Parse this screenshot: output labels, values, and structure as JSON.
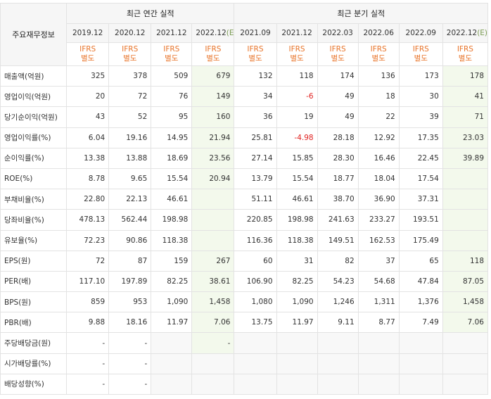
{
  "header": {
    "label_head": "주요재무정보",
    "group_annual": "최근 연간 실적",
    "group_quarter": "최근 분기 실적",
    "periods": [
      {
        "label": "2019.12",
        "est": false
      },
      {
        "label": "2020.12",
        "est": false
      },
      {
        "label": "2021.12",
        "est": false
      },
      {
        "label": "2022.12",
        "est": true,
        "suffix": "(E)"
      },
      {
        "label": "2021.09",
        "est": false
      },
      {
        "label": "2021.12",
        "est": false
      },
      {
        "label": "2022.03",
        "est": false
      },
      {
        "label": "2022.06",
        "est": false
      },
      {
        "label": "2022.09",
        "est": false
      },
      {
        "label": "2022.12",
        "est": true,
        "suffix": "(E)"
      }
    ],
    "ifrs_line1": "IFRS",
    "ifrs_line2": "별도"
  },
  "rows": [
    {
      "label": "매출액(억원)",
      "values": [
        "325",
        "378",
        "509",
        "679",
        "132",
        "118",
        "174",
        "136",
        "173",
        "178"
      ]
    },
    {
      "label": "영업이익(억원)",
      "values": [
        "20",
        "72",
        "76",
        "149",
        "34",
        "-6",
        "49",
        "18",
        "30",
        "41"
      ]
    },
    {
      "label": "당기순이익(억원)",
      "values": [
        "43",
        "52",
        "95",
        "160",
        "36",
        "19",
        "49",
        "22",
        "39",
        "71"
      ]
    },
    {
      "label": "영업이익률(%)",
      "values": [
        "6.04",
        "19.16",
        "14.95",
        "21.94",
        "25.81",
        "-4.98",
        "28.18",
        "12.92",
        "17.35",
        "23.03"
      ]
    },
    {
      "label": "순이익률(%)",
      "values": [
        "13.38",
        "13.88",
        "18.69",
        "23.56",
        "27.14",
        "15.85",
        "28.30",
        "16.46",
        "22.45",
        "39.89"
      ]
    },
    {
      "label": "ROE(%)",
      "values": [
        "8.78",
        "9.65",
        "15.54",
        "20.94",
        "13.79",
        "15.54",
        "18.77",
        "18.04",
        "17.54",
        ""
      ]
    },
    {
      "label": "부채비율(%)",
      "values": [
        "22.80",
        "22.13",
        "46.61",
        "",
        "51.11",
        "46.61",
        "38.70",
        "36.90",
        "37.31",
        ""
      ]
    },
    {
      "label": "당좌비율(%)",
      "values": [
        "478.13",
        "562.44",
        "198.98",
        "",
        "220.85",
        "198.98",
        "241.63",
        "233.27",
        "193.51",
        ""
      ]
    },
    {
      "label": "유보율(%)",
      "values": [
        "72.23",
        "90.86",
        "118.38",
        "",
        "116.36",
        "118.38",
        "149.51",
        "162.53",
        "175.49",
        ""
      ]
    },
    {
      "label": "EPS(원)",
      "values": [
        "72",
        "87",
        "159",
        "267",
        "60",
        "31",
        "82",
        "37",
        "65",
        "118"
      ]
    },
    {
      "label": "PER(배)",
      "values": [
        "117.10",
        "197.89",
        "82.25",
        "38.61",
        "106.90",
        "82.25",
        "54.23",
        "54.68",
        "47.84",
        "87.05"
      ]
    },
    {
      "label": "BPS(원)",
      "values": [
        "859",
        "953",
        "1,090",
        "1,458",
        "1,080",
        "1,090",
        "1,246",
        "1,311",
        "1,376",
        "1,458"
      ]
    },
    {
      "label": "PBR(배)",
      "values": [
        "9.88",
        "18.16",
        "11.97",
        "7.06",
        "13.75",
        "11.97",
        "9.11",
        "8.77",
        "7.49",
        "7.06"
      ]
    },
    {
      "label": "주당배당금(원)",
      "values": [
        "-",
        "-",
        "",
        "-",
        "",
        "",
        "",
        "",
        "",
        ""
      ]
    },
    {
      "label": "시가배당률(%)",
      "values": [
        "-",
        "-",
        "",
        "",
        "",
        "",
        "",
        "",
        "",
        ""
      ]
    },
    {
      "label": "배당성향(%)",
      "values": [
        "-",
        "-",
        "",
        "",
        "",
        "",
        "",
        "",
        "",
        ""
      ]
    }
  ],
  "colors": {
    "ifrs_text": "#e8742a",
    "negative": "#e0211f",
    "estimate_bg": "#f3f9ec",
    "header_bg": "#f6f6f6"
  }
}
